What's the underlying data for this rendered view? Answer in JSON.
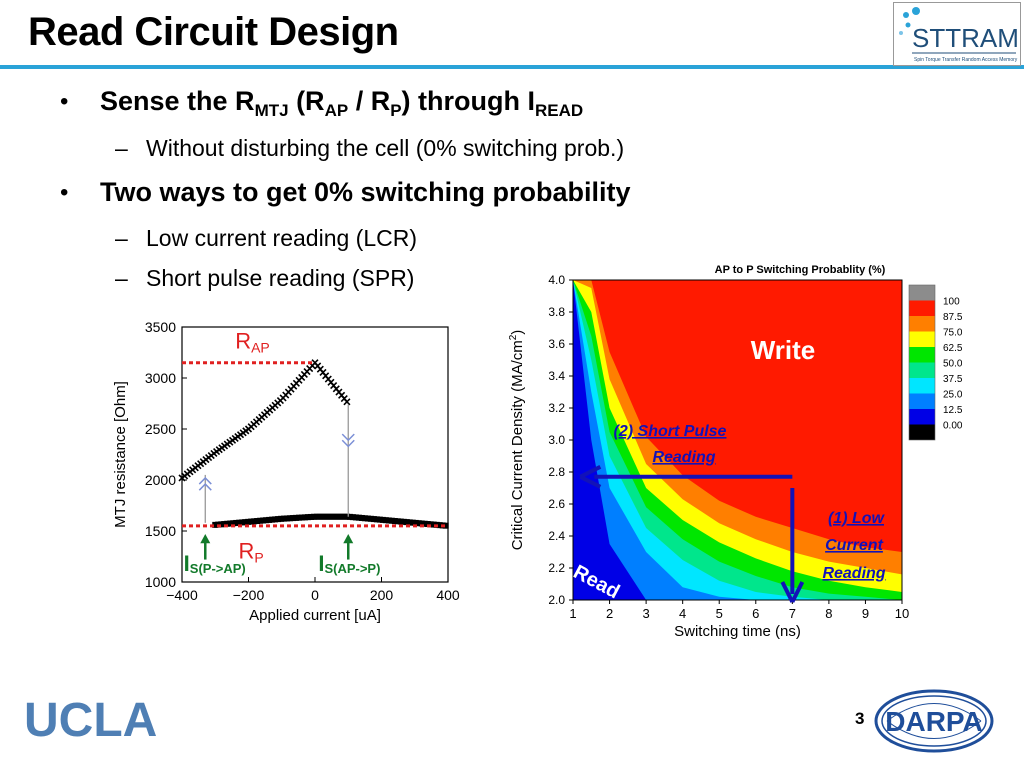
{
  "slide": {
    "title": "Read Circuit Design",
    "page_number": "3",
    "footer_logo_left": "UCLA",
    "footer_logo_right": "DARPA",
    "header_logo": "STTRAM",
    "header_logo_sub": "Spin Torque Transfer Random Access Memory"
  },
  "bullets": {
    "b1": {
      "prefix": "Sense the R",
      "sub1": "MTJ",
      "mid1": " (R",
      "sub2": "AP",
      "mid2": " / R",
      "sub3": "P",
      "mid3": ") through I",
      "sub4": "READ"
    },
    "b1_sub": "Without disturbing the cell (0% switching prob.)",
    "b2": "Two ways to get 0% switching probability",
    "b2_sub1": "Low current reading (LCR)",
    "b2_sub2": "Short pulse reading (SPR)"
  },
  "chart_data": [
    {
      "type": "scatter",
      "xlabel": "Applied current [uA]",
      "ylabel": "MTJ resistance [Ohm]",
      "xlim": [
        -400,
        400
      ],
      "ylim": [
        1000,
        3500
      ],
      "xticks": [
        "−400",
        "−200",
        "0",
        "200",
        "400"
      ],
      "yticks": [
        "1000",
        "1500",
        "2000",
        "2500",
        "3000",
        "3500"
      ],
      "series": [
        {
          "name": "AP branch",
          "x": [
            -400,
            -300,
            -200,
            -100,
            0,
            50,
            100
          ],
          "y": [
            2020,
            2270,
            2500,
            2790,
            3150,
            2950,
            2750
          ]
        },
        {
          "name": "P branch",
          "x": [
            -300,
            -200,
            -100,
            0,
            100,
            200,
            300,
            400
          ],
          "y": [
            1560,
            1590,
            1620,
            1640,
            1640,
            1610,
            1580,
            1550
          ]
        }
      ],
      "annotations": {
        "rap": {
          "main": "R",
          "sub": "AP"
        },
        "rp": {
          "main": "R",
          "sub": "P"
        },
        "is_p_ap": {
          "main": "I",
          "sub": "S(P->AP)"
        },
        "is_ap_p": {
          "main": "I",
          "sub": "S(AP->P)"
        }
      },
      "rap_level": 3150,
      "rp_level": 1550,
      "is_p_ap_x": -330,
      "is_ap_p_x": 100
    },
    {
      "type": "heatmap",
      "title": "AP to P Switching Probablity (%)",
      "xlabel": "Switching time (ns)",
      "ylabel": "Critical Current Density (MA/cm2)",
      "ylabel_main": "Critical Current Density (MA/cm",
      "ylabel_sup": "2",
      "ylabel_end": ")",
      "xlim": [
        1,
        10
      ],
      "ylim": [
        2.0,
        4.0
      ],
      "xticks": [
        "1",
        "2",
        "3",
        "4",
        "5",
        "6",
        "7",
        "8",
        "9",
        "10"
      ],
      "yticks": [
        "2.0",
        "2.2",
        "2.4",
        "2.6",
        "2.8",
        "3.0",
        "3.2",
        "3.4",
        "3.6",
        "3.8",
        "4.0"
      ],
      "legend_levels": [
        "100",
        "87.5",
        "75.0",
        "62.5",
        "50.0",
        "37.5",
        "25.0",
        "12.5",
        "0.00"
      ],
      "legend_colors": [
        "#8c8c8c",
        "#ff1a00",
        "#ff7f00",
        "#ffff00",
        "#00e600",
        "#00e68c",
        "#00e6ff",
        "#007fff",
        "#0000e6",
        "#000000"
      ],
      "contours_x": [
        1,
        1.5,
        2,
        3,
        4,
        5,
        6,
        7,
        8,
        9,
        10
      ],
      "contours": [
        {
          "color": "#0000e6",
          "y": [
            4.0,
            3.0,
            2.35,
            2.0,
            2.0,
            2.0,
            2.0,
            2.0,
            2.0,
            2.0,
            2.0
          ]
        },
        {
          "color": "#007fff",
          "y": [
            4.0,
            3.3,
            2.7,
            2.3,
            2.08,
            2.02,
            2.0,
            2.0,
            2.0,
            2.0,
            2.0
          ]
        },
        {
          "color": "#00e6ff",
          "y": [
            4.0,
            3.5,
            2.9,
            2.45,
            2.25,
            2.12,
            2.05,
            2.02,
            2.0,
            2.0,
            2.0
          ]
        },
        {
          "color": "#00e68c",
          "y": [
            4.0,
            3.65,
            3.05,
            2.58,
            2.38,
            2.24,
            2.15,
            2.08,
            2.04,
            2.02,
            2.0
          ]
        },
        {
          "color": "#00e600",
          "y": [
            4.0,
            3.8,
            3.2,
            2.7,
            2.5,
            2.36,
            2.26,
            2.18,
            2.12,
            2.08,
            2.05
          ]
        },
        {
          "color": "#ffff00",
          "y": [
            4.0,
            3.95,
            3.38,
            2.85,
            2.63,
            2.48,
            2.38,
            2.3,
            2.24,
            2.2,
            2.16
          ]
        },
        {
          "color": "#ff7f00",
          "y": [
            4.0,
            4.0,
            3.55,
            3.02,
            2.78,
            2.62,
            2.52,
            2.45,
            2.38,
            2.33,
            2.3
          ]
        }
      ],
      "red_color": "#ff1a00",
      "annotations": {
        "write": "Write",
        "spr_line1": "(2) Short Pulse",
        "spr_line2": "Reading",
        "lcr_line1": "(1) Low",
        "lcr_line2": "Current",
        "lcr_line3": "Reading",
        "read": "Read"
      },
      "spr_arrow": {
        "from": [
          7,
          2.77
        ],
        "to": [
          1.2,
          2.77
        ]
      },
      "lcr_arrow": {
        "from": [
          7,
          2.7
        ],
        "to": [
          7,
          2.0
        ]
      }
    }
  ]
}
